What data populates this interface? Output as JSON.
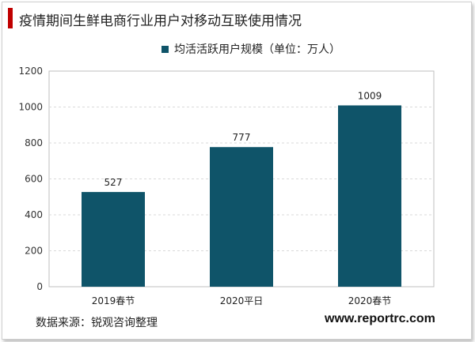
{
  "header": {
    "title": "疫情期间生鲜电商行业用户对移动互联使用情况"
  },
  "chart_data": {
    "type": "bar",
    "title": "疫情期间生鲜电商行业用户对移动互联使用情况",
    "categories": [
      "2019春节",
      "2020平日",
      "2020春节"
    ],
    "series": [
      {
        "name": "均活活跃用户规模（单位：万人）",
        "values": [
          527,
          777,
          1009
        ],
        "color": "#0f5469"
      }
    ],
    "ylim": [
      0,
      1200
    ],
    "yticks": [
      0,
      200,
      400,
      600,
      800,
      1000,
      1200
    ],
    "grid": true,
    "legend": "top",
    "xlabel": "",
    "ylabel": ""
  },
  "footer": {
    "source": "数据来源：锐观咨询整理",
    "site": "www.reportrc.com"
  }
}
